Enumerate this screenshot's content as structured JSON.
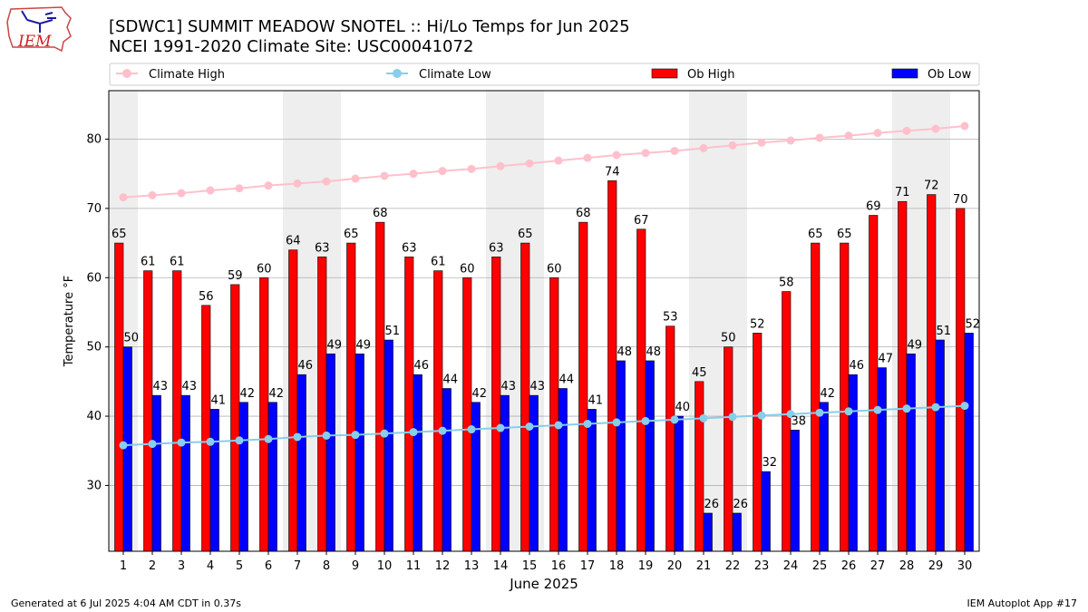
{
  "logo": {
    "text": "IEM"
  },
  "title_line1": "[SDWC1] SUMMIT MEADOW SNOTEL :: Hi/Lo Temps for Jun 2025",
  "title_line2": "NCEI 1991-2020 Climate Site: USC00041072",
  "footer_left": "Generated at 6 Jul 2025 4:04 AM CDT in 0.37s",
  "footer_right": "IEM Autoplot App #17",
  "colors": {
    "ob_high": "#ff0000",
    "ob_low": "#0000ff",
    "climate_high": "#ffc0cb",
    "climate_low": "#87ceeb",
    "weekend_band": "#eeeeee",
    "grid": "#b0b0b0"
  },
  "chart_data": {
    "type": "bar",
    "xlabel": "June 2025",
    "ylabel": "Temperature °F",
    "ylim": [
      20.5,
      87
    ],
    "yticks": [
      30,
      40,
      50,
      60,
      70,
      80
    ],
    "grid": "horizontal",
    "legend_position": "top",
    "weekend_days": [
      1,
      7,
      8,
      14,
      15,
      21,
      22,
      28,
      29
    ],
    "categories": [
      "1",
      "2",
      "3",
      "4",
      "5",
      "6",
      "7",
      "8",
      "9",
      "10",
      "11",
      "12",
      "13",
      "14",
      "15",
      "16",
      "17",
      "18",
      "19",
      "20",
      "21",
      "22",
      "23",
      "24",
      "25",
      "26",
      "27",
      "28",
      "29",
      "30"
    ],
    "series": [
      {
        "name": "Ob High",
        "kind": "bar",
        "values": [
          65,
          61,
          61,
          56,
          59,
          60,
          64,
          63,
          65,
          68,
          63,
          61,
          60,
          63,
          65,
          60,
          68,
          74,
          67,
          53,
          45,
          50,
          52,
          58,
          65,
          65,
          69,
          71,
          72,
          70
        ]
      },
      {
        "name": "Ob Low",
        "kind": "bar",
        "values": [
          50,
          43,
          43,
          41,
          42,
          42,
          46,
          49,
          49,
          51,
          46,
          44,
          42,
          43,
          43,
          44,
          41,
          48,
          48,
          40,
          26,
          26,
          32,
          38,
          42,
          46,
          47,
          49,
          51,
          52
        ]
      },
      {
        "name": "Climate High",
        "kind": "line",
        "values": [
          71.6,
          71.9,
          72.2,
          72.6,
          72.9,
          73.3,
          73.6,
          73.9,
          74.3,
          74.7,
          75.0,
          75.4,
          75.7,
          76.1,
          76.5,
          76.9,
          77.3,
          77.7,
          78.0,
          78.3,
          78.7,
          79.1,
          79.5,
          79.8,
          80.2,
          80.5,
          80.9,
          81.2,
          81.5,
          81.9
        ]
      },
      {
        "name": "Climate Low",
        "kind": "line",
        "values": [
          35.8,
          36.0,
          36.2,
          36.3,
          36.5,
          36.7,
          37.0,
          37.2,
          37.3,
          37.5,
          37.7,
          37.9,
          38.1,
          38.3,
          38.5,
          38.7,
          38.9,
          39.1,
          39.3,
          39.5,
          39.7,
          39.9,
          40.1,
          40.3,
          40.5,
          40.7,
          40.9,
          41.1,
          41.3,
          41.5
        ]
      }
    ]
  }
}
